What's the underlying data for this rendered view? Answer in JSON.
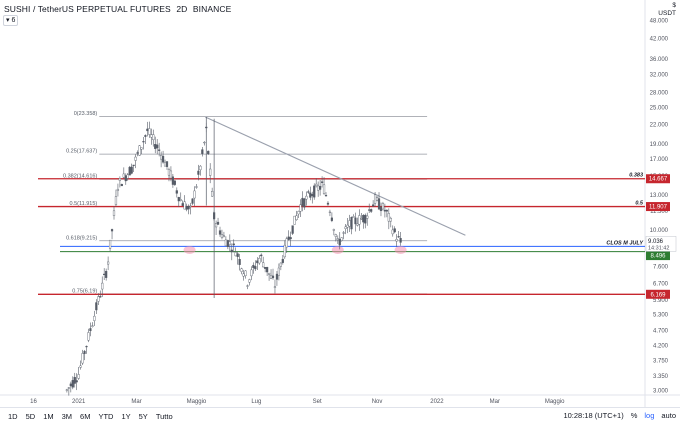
{
  "header": {
    "symbol": "SUSHI / TetherUS PERPETUAL FUTURES",
    "interval": "2D",
    "exchange": "BINANCE",
    "indicator_badge": "6"
  },
  "currency": {
    "sign": "$",
    "code": "USDT"
  },
  "timeframes": [
    "1D",
    "5D",
    "1M",
    "3M",
    "6M",
    "YTD",
    "1Y",
    "5Y",
    "Tutto"
  ],
  "footer": {
    "clock": "10:28:18 (UTC+1)",
    "pct": "%",
    "log": "log",
    "auto": "auto"
  },
  "colors": {
    "up": "#26a69a",
    "down": "#ef5350",
    "candle": "#555b66",
    "red_line": "#c6262e",
    "blue_line": "#2962ff",
    "green_line": "#2e7d32",
    "fib_line": "#9598a1",
    "trend_line": "#9aa0ad"
  },
  "chart_data": {
    "type": "candlestick",
    "y_axis": {
      "scale": "log",
      "range": [
        2.9,
        56
      ],
      "tick_labels": [
        "48.000",
        "42.000",
        "36.000",
        "32.000",
        "28.000",
        "25.000",
        "22.000",
        "19.000",
        "17.000",
        "15.000",
        "13.000",
        "11.500",
        "10.000",
        "8.700",
        "7.600",
        "6.700",
        "5.900",
        "5.300",
        "4.700",
        "4.200",
        "3.750",
        "3.350",
        "3.000"
      ]
    },
    "x_axis": {
      "tick_labels": [
        "16",
        "2021",
        "Mar",
        "Maggio",
        "Lug",
        "Set",
        "Nov",
        "2022",
        "Mar",
        "Maggio"
      ]
    },
    "fib_levels": [
      {
        "label": "0(23.358)",
        "value": 23.358
      },
      {
        "label": "0.25(17.637)",
        "value": 17.637
      },
      {
        "label": "0.382(14.616)",
        "value": 14.616
      },
      {
        "label": "0.5(11.915)",
        "value": 11.915
      },
      {
        "label": "0.618(9.215)",
        "value": 9.215
      },
      {
        "label": "0.75(6.19)",
        "value": 6.19
      }
    ],
    "horizontal_lines": [
      {
        "label": "0.383",
        "price_tag": "14.667",
        "value": 14.667,
        "color": "red"
      },
      {
        "label": "0.5",
        "price_tag": "11.907",
        "value": 11.907,
        "color": "red"
      },
      {
        "label": "CLOS M JULY",
        "price_tag": "8.834",
        "value": 8.834,
        "color": "blue"
      },
      {
        "label": "",
        "price_tag": "8.496",
        "value": 8.496,
        "color": "green"
      },
      {
        "label": "",
        "price_tag": "6.169",
        "value": 6.169,
        "color": "red"
      }
    ],
    "last_price": {
      "value": "9.036",
      "countdown": "14:31:42"
    },
    "trendline": [
      {
        "date": "2021-05-10",
        "value": 23.3
      },
      {
        "date": "2022-01-30",
        "value": 9.6
      }
    ],
    "support_zones": [
      {
        "date": "2021-04-24",
        "value": 8.6
      },
      {
        "date": "2021-09-22",
        "value": 8.6
      },
      {
        "date": "2021-11-25",
        "value": 8.6
      }
    ],
    "price_path": [
      {
        "date": "2020-12-20",
        "value": 3.0
      },
      {
        "date": "2021-01-01",
        "value": 3.4
      },
      {
        "date": "2021-01-15",
        "value": 5.0
      },
      {
        "date": "2021-01-30",
        "value": 7.5
      },
      {
        "date": "2021-02-10",
        "value": 14.0
      },
      {
        "date": "2021-02-25",
        "value": 16.0
      },
      {
        "date": "2021-03-12",
        "value": 21.0
      },
      {
        "date": "2021-03-25",
        "value": 18.0
      },
      {
        "date": "2021-04-05",
        "value": 15.0
      },
      {
        "date": "2021-04-15",
        "value": 12.5
      },
      {
        "date": "2021-04-25",
        "value": 11.5
      },
      {
        "date": "2021-05-05",
        "value": 16.0
      },
      {
        "date": "2021-05-11",
        "value": 21.0
      },
      {
        "date": "2021-05-19",
        "value": 11.0
      },
      {
        "date": "2021-05-28",
        "value": 9.5
      },
      {
        "date": "2021-06-10",
        "value": 8.6
      },
      {
        "date": "2021-06-22",
        "value": 6.8
      },
      {
        "date": "2021-07-05",
        "value": 8.2
      },
      {
        "date": "2021-07-20",
        "value": 6.6
      },
      {
        "date": "2021-08-01",
        "value": 9.0
      },
      {
        "date": "2021-08-15",
        "value": 12.0
      },
      {
        "date": "2021-08-28",
        "value": 13.3
      },
      {
        "date": "2021-09-07",
        "value": 14.0
      },
      {
        "date": "2021-09-15",
        "value": 11.5
      },
      {
        "date": "2021-09-22",
        "value": 9.0
      },
      {
        "date": "2021-10-05",
        "value": 10.5
      },
      {
        "date": "2021-10-20",
        "value": 11.0
      },
      {
        "date": "2021-10-30",
        "value": 12.5
      },
      {
        "date": "2021-11-10",
        "value": 11.5
      },
      {
        "date": "2021-11-20",
        "value": 9.6
      },
      {
        "date": "2021-11-26",
        "value": 9.0
      }
    ]
  }
}
